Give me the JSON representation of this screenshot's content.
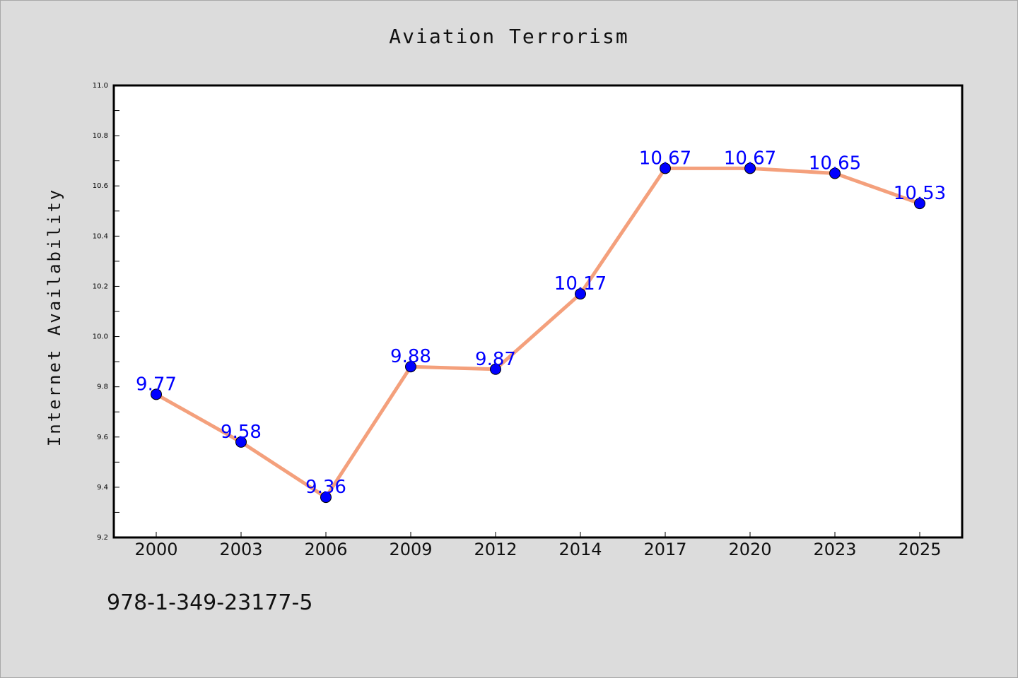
{
  "chart_data": {
    "type": "line",
    "title": "Aviation Terrorism",
    "xlabel": "",
    "ylabel": "Internet Availability",
    "categories": [
      "2000",
      "2003",
      "2006",
      "2009",
      "2012",
      "2014",
      "2017",
      "2020",
      "2023",
      "2025"
    ],
    "series": [
      {
        "values": [
          9.77,
          9.58,
          9.36,
          9.88,
          9.87,
          10.17,
          10.67,
          10.67,
          10.65,
          10.53
        ]
      }
    ],
    "data_labels": [
      "9.77",
      "9.58",
      "9.36",
      "9.88",
      "9.87",
      "10.17",
      "10.67",
      "10.67",
      "10.65",
      "10.53"
    ],
    "ylim": [
      9.2,
      11.0
    ],
    "yticks": [
      "9.2",
      "9.4",
      "9.6",
      "9.8",
      "10.0",
      "10.2",
      "10.4",
      "10.6",
      "10.8",
      "11.0"
    ],
    "grid": false,
    "legend": "none",
    "colors": {
      "line": "#f4a07c",
      "marker": "#0000ff",
      "label": "#0000ff",
      "background": "#dcdcdc",
      "plot_bg": "#ffffff"
    }
  },
  "footer": {
    "isbn": "978-1-349-23177-5"
  }
}
